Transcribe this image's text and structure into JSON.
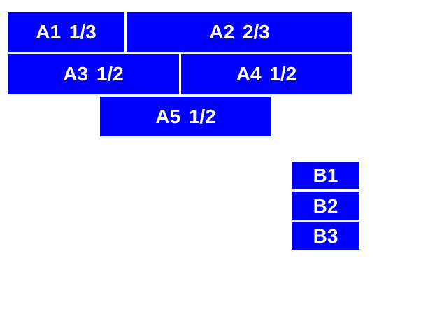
{
  "colors": {
    "page_background": "#ffffff",
    "box_background": "#0000ff",
    "box_text": "#ffffff"
  },
  "flex_section": {
    "rows": [
      {
        "boxes": [
          {
            "label": "A1 1/3"
          },
          {
            "label": "A2 2/3"
          }
        ]
      },
      {
        "boxes": [
          {
            "label": "A3 1/2"
          },
          {
            "label": "A4 1/2"
          }
        ]
      },
      {
        "boxes": [
          {
            "label": "A5 1/2"
          }
        ]
      }
    ]
  },
  "stack_section": {
    "boxes": [
      {
        "label": "B1"
      },
      {
        "label": "B2"
      },
      {
        "label": "B3"
      }
    ]
  }
}
